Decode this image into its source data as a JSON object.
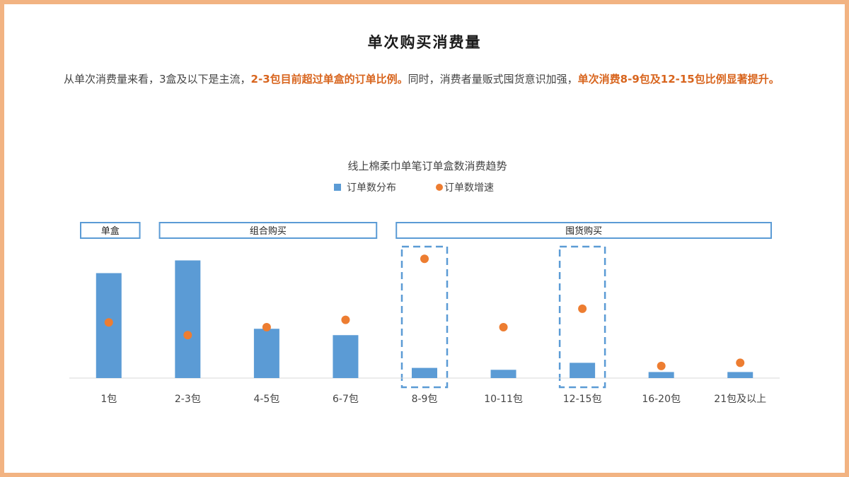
{
  "page": {
    "title": "单次购买消费量",
    "summary": {
      "part1": "从单次消费量来看，3盒及以下是主流，",
      "highlight1": "2-3包目前超过单盒的订单比例。",
      "part2": "同时，消费者量贩式囤货意识加强，",
      "highlight2": "单次消费8-9包及12-15包比例显著提升。"
    }
  },
  "colors": {
    "frame": "#f2b382",
    "bar": "#5b9bd5",
    "dot": "#ed7d31",
    "highlight_text": "#d8651e"
  },
  "chart_data": {
    "type": "bar",
    "title": "线上棉柔巾单笔订单盒数消费趋势",
    "categories": [
      "1包",
      "2-3包",
      "4-5包",
      "6-7包",
      "8-9包",
      "10-11包",
      "12-15包",
      "16-20包",
      "21包及以上"
    ],
    "series": [
      {
        "name": "订单数分布",
        "type": "bar",
        "values": [
          33,
          37,
          15.5,
          13.5,
          3.2,
          2.6,
          4.8,
          1.9,
          1.9
        ]
      },
      {
        "name": "订单数增速",
        "type": "scatter",
        "values": [
          17.5,
          13.5,
          16,
          18.3,
          37.5,
          16,
          21.8,
          3.8,
          4.8
        ]
      }
    ],
    "ylim": [
      0,
      40
    ],
    "groups": [
      {
        "label": "单盒",
        "start": 0,
        "end": 0
      },
      {
        "label": "组合购买",
        "start": 1,
        "end": 3
      },
      {
        "label": "囤货购买",
        "start": 4,
        "end": 8
      }
    ],
    "highlighted_categories": [
      4,
      6
    ],
    "legend_position": "top"
  }
}
